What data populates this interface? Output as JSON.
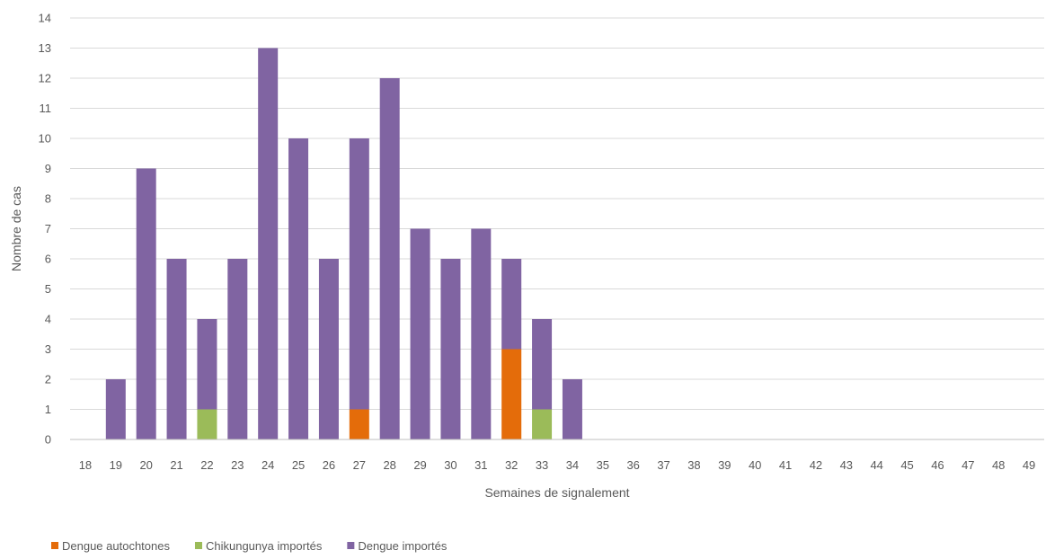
{
  "chart_data": {
    "type": "bar",
    "stacked": true,
    "xlabel": "Semaines de signalement",
    "ylabel": "Nombre de cas",
    "ylim": [
      0,
      14
    ],
    "yticks": [
      "0",
      "1",
      "2",
      "3",
      "4",
      "5",
      "6",
      "7",
      "8",
      "9",
      "10",
      "11",
      "12",
      "13",
      "14"
    ],
    "grid": true,
    "legend_position": "bottom-left",
    "categories": [
      "18",
      "19",
      "20",
      "21",
      "22",
      "23",
      "24",
      "25",
      "26",
      "27",
      "28",
      "29",
      "30",
      "31",
      "32",
      "33",
      "34",
      "35",
      "36",
      "37",
      "38",
      "39",
      "40",
      "41",
      "42",
      "43",
      "44",
      "45",
      "46",
      "47",
      "48",
      "49"
    ],
    "series": [
      {
        "name": "Dengue autochtones",
        "color": "#e46c0a",
        "values": [
          0,
          0,
          0,
          0,
          0,
          0,
          0,
          0,
          0,
          1,
          0,
          0,
          0,
          0,
          3,
          0,
          0,
          0,
          0,
          0,
          0,
          0,
          0,
          0,
          0,
          0,
          0,
          0,
          0,
          0,
          0,
          0
        ]
      },
      {
        "name": "Chikungunya importés",
        "color": "#9bbb59",
        "values": [
          0,
          0,
          0,
          0,
          1,
          0,
          0,
          0,
          0,
          0,
          0,
          0,
          0,
          0,
          0,
          1,
          0,
          0,
          0,
          0,
          0,
          0,
          0,
          0,
          0,
          0,
          0,
          0,
          0,
          0,
          0,
          0
        ]
      },
      {
        "name": "Dengue importés",
        "color": "#8064a2",
        "values": [
          0,
          2,
          9,
          6,
          3,
          6,
          13,
          10,
          6,
          9,
          12,
          7,
          6,
          7,
          3,
          3,
          2,
          0,
          0,
          0,
          0,
          0,
          0,
          0,
          0,
          0,
          0,
          0,
          0,
          0,
          0,
          0
        ]
      }
    ]
  }
}
